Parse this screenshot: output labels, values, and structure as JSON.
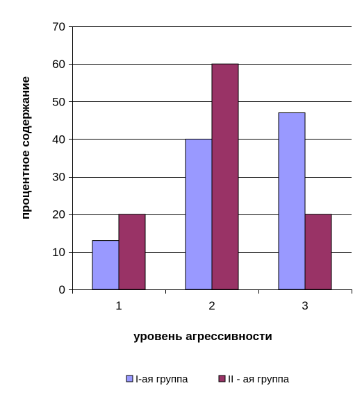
{
  "chart_data": {
    "type": "bar",
    "categories": [
      "1",
      "2",
      "3"
    ],
    "series": [
      {
        "name": "I-ая группа",
        "values": [
          13,
          40,
          47
        ],
        "color": "#9999ff"
      },
      {
        "name": "II - ая группа",
        "values": [
          20,
          60,
          20
        ],
        "color": "#993366"
      }
    ],
    "xlabel": "уровень агрессивности",
    "ylabel": "процентное содержание",
    "ylim": [
      0,
      70
    ],
    "yticks": [
      0,
      10,
      20,
      30,
      40,
      50,
      60,
      70
    ],
    "grid": true,
    "legend_position": "bottom"
  }
}
